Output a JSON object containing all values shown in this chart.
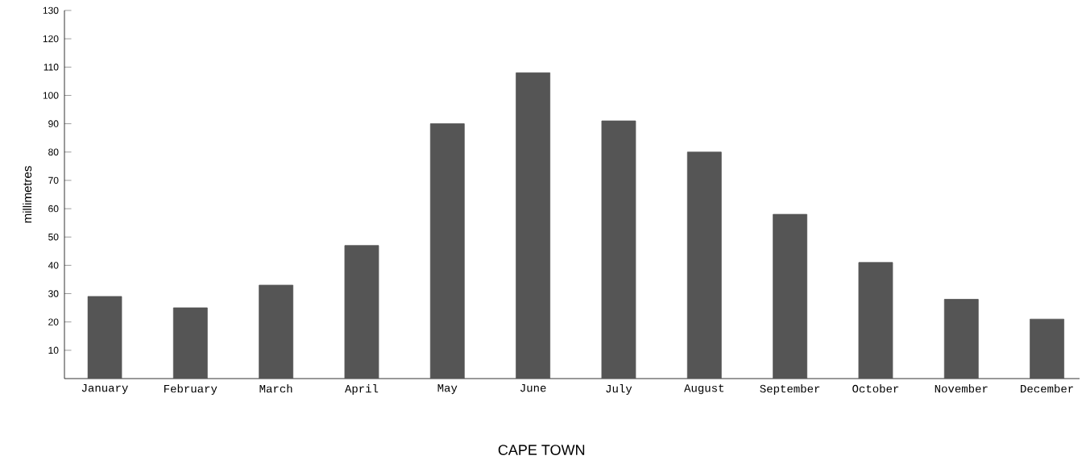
{
  "chart_data": {
    "type": "bar",
    "title": "CAPE TOWN",
    "ylabel": "millimetres",
    "categories": [
      "January",
      "February",
      "March",
      "April",
      "May",
      "June",
      "July",
      "August",
      "September",
      "October",
      "November",
      "December"
    ],
    "values": [
      29,
      25,
      33,
      47,
      90,
      108,
      91,
      80,
      58,
      41,
      28,
      21
    ],
    "color": "#555555",
    "ylim": [
      0,
      130
    ],
    "yticks": [
      10,
      20,
      30,
      40,
      50,
      60,
      70,
      80,
      90,
      100,
      110,
      120,
      130
    ],
    "grid": false
  }
}
